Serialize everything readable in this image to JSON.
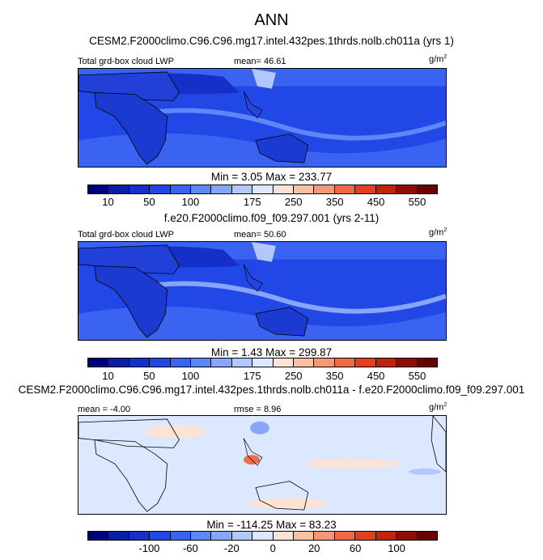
{
  "page": {
    "title": "ANN"
  },
  "chart_data": [
    {
      "type": "heatmap",
      "header": "CESM2.F2000climo.C96.C96.mg17.intel.432pes.1thrds.nolb.ch011a (yrs 1)",
      "left_label": "Total grd-box cloud LWP",
      "center_label": "mean=  46.61",
      "units": "g/m",
      "units_sup": "2",
      "stats": "Min =   3.05 Max = 233.77",
      "levels": [
        10,
        25,
        50,
        75,
        100,
        125,
        150,
        175,
        200,
        250,
        300,
        350,
        400,
        450,
        500,
        550
      ],
      "tick_labels": [
        "10",
        "50",
        "100",
        "175",
        "250",
        "350",
        "450",
        "550"
      ],
      "colors": [
        "#00007f",
        "#0a1fa3",
        "#1530c8",
        "#2147e6",
        "#3a63f2",
        "#5f86f6",
        "#87a6f9",
        "#b2c8fb",
        "#dce8ff",
        "#fde2d6",
        "#f9c0a4",
        "#f69878",
        "#f06a48",
        "#e2401f",
        "#c0240f",
        "#900d05",
        "#6b0000"
      ]
    },
    {
      "type": "heatmap",
      "header": "f.e20.F2000climo.f09_f09.297.001 (yrs 2-11)",
      "left_label": "Total grd-box cloud LWP",
      "center_label": "mean=  50.60",
      "units": "g/m",
      "units_sup": "2",
      "stats": "Min =   1.43 Max = 299.87",
      "levels": [
        10,
        25,
        50,
        75,
        100,
        125,
        150,
        175,
        200,
        250,
        300,
        350,
        400,
        450,
        500,
        550
      ],
      "tick_labels": [
        "10",
        "50",
        "100",
        "175",
        "250",
        "350",
        "450",
        "550"
      ],
      "colors": [
        "#00007f",
        "#0a1fa3",
        "#1530c8",
        "#2147e6",
        "#3a63f2",
        "#5f86f6",
        "#87a6f9",
        "#b2c8fb",
        "#dce8ff",
        "#fde2d6",
        "#f9c0a4",
        "#f69878",
        "#f06a48",
        "#e2401f",
        "#c0240f",
        "#900d05",
        "#6b0000"
      ]
    },
    {
      "type": "heatmap",
      "header": "CESM2.F2000climo.C96.C96.mg17.intel.432pes.1thrds.nolb.ch011a - f.e20.F2000climo.f09_f09.297.001",
      "left_label": "mean =  -4.00",
      "center_label": "rmse =   8.96",
      "units": "g/m",
      "units_sup": "2",
      "stats": "Min = -114.25 Max =  83.23",
      "levels": [
        -140,
        -120,
        -100,
        -80,
        -60,
        -40,
        -20,
        -10,
        0,
        10,
        20,
        40,
        60,
        80,
        100,
        120
      ],
      "tick_labels": [
        "-100",
        "-60",
        "-20",
        "0",
        "20",
        "60",
        "100"
      ],
      "colors": [
        "#00007f",
        "#0a1fa3",
        "#1530c8",
        "#2147e6",
        "#3a63f2",
        "#5f86f6",
        "#87a6f9",
        "#b2c8fb",
        "#dce8ff",
        "#fde2d6",
        "#f9c0a4",
        "#f69878",
        "#f06a48",
        "#e2401f",
        "#c0240f",
        "#900d05",
        "#6b0000"
      ]
    }
  ]
}
